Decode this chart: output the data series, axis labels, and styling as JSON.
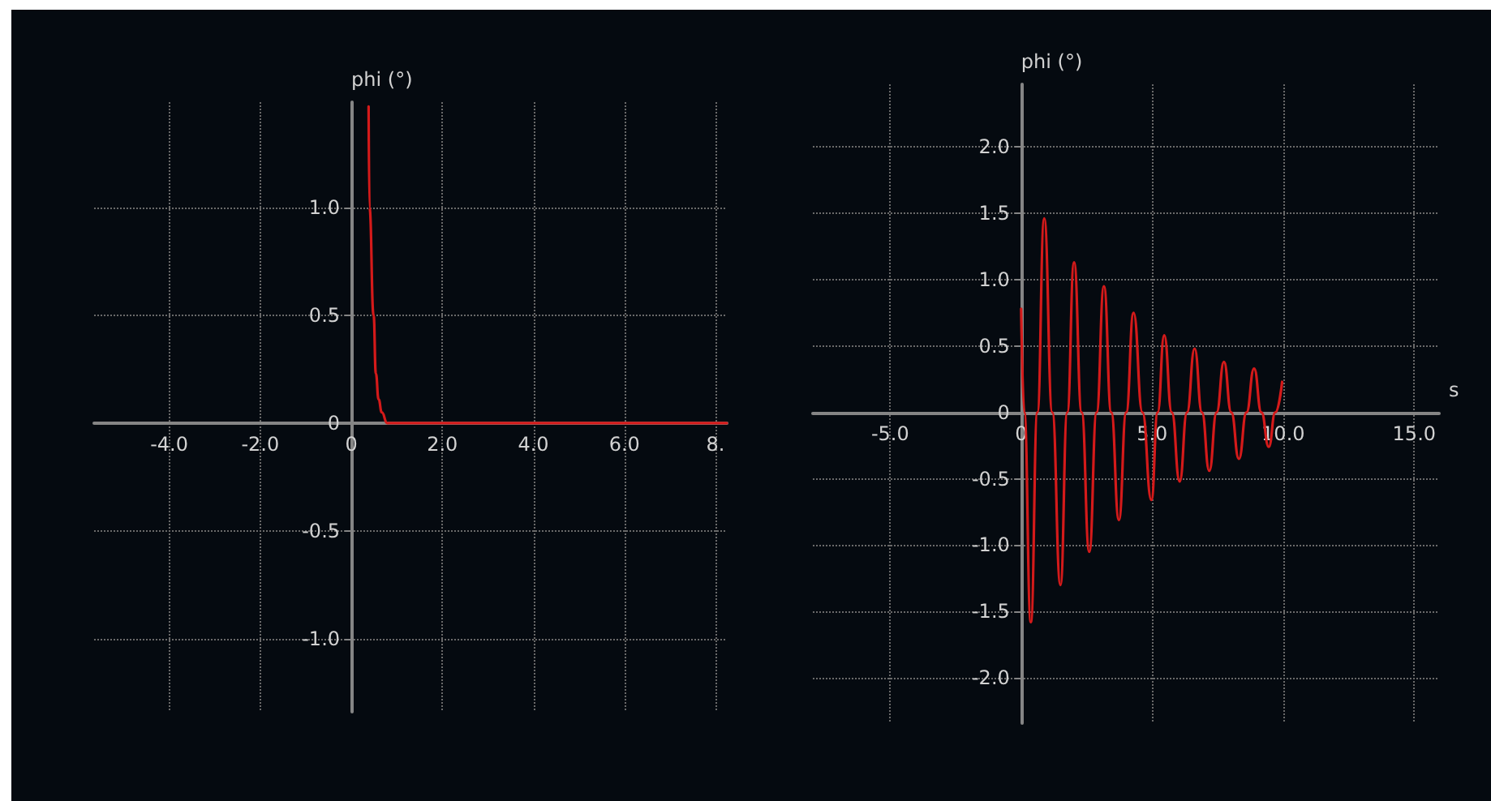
{
  "chart_data": [
    {
      "type": "line",
      "ylabel": "phi (°)",
      "xlim": [
        -5.65,
        8.25
      ],
      "ylim": [
        -1.34,
        1.49
      ],
      "xticks": [
        {
          "value": -4,
          "label": "-4.0"
        },
        {
          "value": -2,
          "label": "-2.0"
        },
        0,
        {
          "value": 2,
          "label": "2.0"
        },
        {
          "value": 4,
          "label": "4.0"
        },
        {
          "value": 6,
          "label": "6.0"
        },
        {
          "value": 8,
          "label": "8."
        }
      ],
      "yticks": [
        {
          "value": -1,
          "label": "-1.0"
        },
        -0.5,
        0,
        0.5,
        {
          "value": 1,
          "label": "1.0"
        }
      ],
      "grid": true,
      "marker": "none",
      "series": [
        {
          "color": "#d41a1a",
          "x": [
            0.38,
            0.4,
            0.49,
            0.54,
            0.6,
            0.67,
            0.79,
            8.25
          ],
          "values": [
            1.47,
            1.0,
            0.5,
            0.23,
            0.11,
            0.05,
            0,
            0
          ]
        }
      ]
    },
    {
      "type": "line",
      "xlabel": "s",
      "ylabel": "phi (°)",
      "xlim": [
        -7.95,
        15.95
      ],
      "ylim": [
        -2.34,
        2.47
      ],
      "xticks": [
        {
          "value": -5,
          "label": "-5.0"
        },
        0,
        {
          "value": 5,
          "label": "5.0"
        },
        {
          "value": 10,
          "label": "10.0"
        },
        {
          "value": 15,
          "label": "15.0"
        }
      ],
      "yticks": [
        {
          "value": -2,
          "label": "-2.0"
        },
        -1.5,
        {
          "value": -1,
          "label": "-1.0"
        },
        -0.5,
        0,
        0.5,
        {
          "value": 1,
          "label": "1.0"
        },
        1.5,
        {
          "value": 2,
          "label": "2.0"
        }
      ],
      "grid": true,
      "marker": "none",
      "series": [
        {
          "color": "#d41a1a",
          "x": [
            0,
            0.12,
            0.37,
            0.62,
            0.88,
            1.19,
            1.5,
            1.76,
            2.02,
            2.31,
            2.6,
            2.88,
            3.16,
            3.44,
            3.73,
            4.01,
            4.29,
            4.63,
            4.97,
            5.21,
            5.46,
            5.75,
            6.05,
            6.33,
            6.62,
            6.9,
            7.18,
            7.46,
            7.74,
            8.02,
            8.31,
            8.6,
            8.89,
            9.17,
            9.45,
            9.7,
            9.96
          ],
          "values": [
            0.78,
            0,
            -1.58,
            0,
            1.46,
            0,
            -1.3,
            0,
            1.13,
            0,
            -1.05,
            0,
            0.95,
            0,
            -0.81,
            0,
            0.75,
            0,
            -0.66,
            0,
            0.58,
            0,
            -0.52,
            0,
            0.48,
            0,
            -0.44,
            0,
            0.38,
            0,
            -0.35,
            0,
            0.33,
            0,
            -0.26,
            0,
            0.23
          ]
        }
      ]
    }
  ]
}
